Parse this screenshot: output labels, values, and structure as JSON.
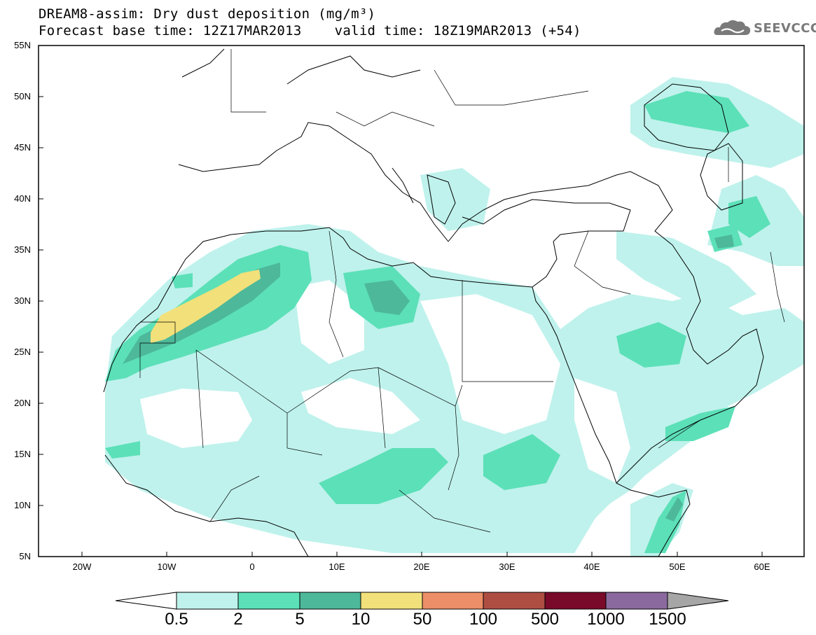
{
  "title": {
    "line1": "DREAM8-assim: Dry dust deposition (mg/m³)",
    "line2": "Forecast base time: 12Z17MAR2013    valid time: 18Z19MAR2013 (+54)"
  },
  "logo": {
    "text": "SEEVCCC",
    "icon": "cloud-icon"
  },
  "map": {
    "region": "North Africa, Mediterranean and Middle East",
    "lon_range": [
      -25,
      65
    ],
    "lat_range": [
      5,
      55
    ],
    "lat_labels": [
      "55N",
      "50N",
      "45N",
      "40N",
      "35N",
      "30N",
      "25N",
      "20N",
      "15N",
      "10N",
      "5N"
    ],
    "lon_labels": [
      "20W",
      "10W",
      "0",
      "10E",
      "20E",
      "30E",
      "40E",
      "50E",
      "60E"
    ]
  },
  "colors": {
    "c1": "#bff2ec",
    "c2": "#5ce0b8",
    "c3": "#4db89a",
    "c4": "#f2e07a",
    "c5": "#ec8f68",
    "c6": "#ae4e42",
    "c7": "#7a0a2a",
    "c8": "#8a6a9e",
    "c9": "#a6a6a6"
  },
  "colorbar": {
    "labels": [
      "0.5",
      "2",
      "5",
      "10",
      "50",
      "100",
      "500",
      "1000",
      "1500"
    ]
  }
}
